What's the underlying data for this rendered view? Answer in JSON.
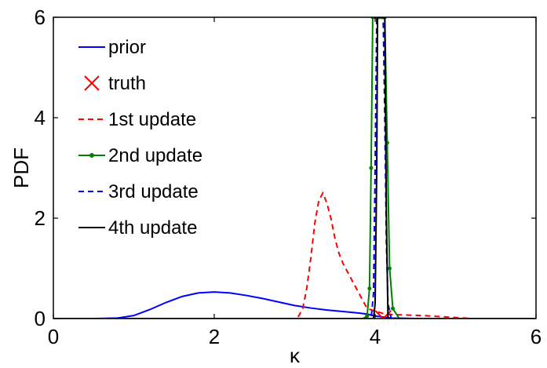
{
  "chart_data": {
    "type": "line",
    "xlabel": "κ",
    "ylabel": "PDF",
    "xlim": [
      0,
      6
    ],
    "ylim": [
      0,
      6
    ],
    "xticks": [
      "0",
      "2",
      "4",
      "6"
    ],
    "yticks": [
      "0",
      "2",
      "4",
      "6"
    ],
    "grid": false,
    "legend": {
      "placement": "top-left"
    },
    "series": [
      {
        "name": "prior",
        "color": "#0000ff",
        "style": "solid",
        "x": [
          0,
          0.5,
          0.8,
          1.0,
          1.2,
          1.4,
          1.6,
          1.8,
          2.0,
          2.2,
          2.4,
          2.6,
          2.8,
          3.0,
          3.2,
          3.4,
          3.6,
          3.8,
          3.9,
          4.0,
          4.2,
          4.5,
          5.0,
          5.5,
          6.0
        ],
        "y": [
          0,
          0,
          0.01,
          0.06,
          0.18,
          0.32,
          0.44,
          0.51,
          0.53,
          0.51,
          0.46,
          0.4,
          0.33,
          0.26,
          0.21,
          0.17,
          0.14,
          0.11,
          0.09,
          0.05,
          0.01,
          0,
          0,
          0,
          0
        ]
      },
      {
        "name": "truth",
        "color": "#ff0000",
        "style": "marker-x",
        "x": [
          4.1
        ],
        "y": [
          0
        ]
      },
      {
        "name": "1st update",
        "color": "#ff0000",
        "style": "dashed",
        "x": [
          0,
          3.0,
          3.05,
          3.1,
          3.15,
          3.2,
          3.25,
          3.3,
          3.35,
          3.4,
          3.45,
          3.5,
          3.55,
          3.6,
          3.7,
          3.8,
          3.9,
          4.0,
          4.1,
          4.2,
          4.4,
          4.6,
          4.8,
          5.0,
          5.2,
          6.0
        ],
        "y": [
          0,
          0,
          0.05,
          0.2,
          0.6,
          1.2,
          1.9,
          2.35,
          2.5,
          2.3,
          2.0,
          1.6,
          1.3,
          1.1,
          0.8,
          0.5,
          0.2,
          0.15,
          0.1,
          0.08,
          0.07,
          0.06,
          0.04,
          0.02,
          0,
          0
        ]
      },
      {
        "name": "2nd update",
        "color": "#008000",
        "style": "solid-dot",
        "x": [
          0,
          3.85,
          3.9,
          3.93,
          3.95,
          3.97,
          4.0,
          4.02,
          4.05,
          4.08,
          4.1,
          4.12,
          4.15,
          4.18,
          4.22,
          4.3,
          6.0
        ],
        "y": [
          0,
          0,
          0.05,
          0.6,
          3.0,
          6.0,
          6.0,
          6.0,
          6.0,
          6.0,
          6.0,
          6.0,
          3.5,
          1.0,
          0.2,
          0,
          0
        ]
      },
      {
        "name": "3rd update",
        "color": "#0000ff",
        "style": "dashed",
        "x": [
          0,
          3.95,
          3.98,
          4.0,
          4.02,
          4.04,
          4.08,
          4.1,
          4.12,
          4.14,
          4.16,
          4.2,
          6.0
        ],
        "y": [
          0,
          0,
          0.5,
          3.0,
          6.0,
          6.0,
          6.0,
          6.0,
          4.0,
          1.5,
          0.3,
          0,
          0
        ]
      },
      {
        "name": "4th update",
        "color": "#000000",
        "style": "solid",
        "x": [
          0,
          3.98,
          4.0,
          4.02,
          4.03,
          4.05,
          4.08,
          4.1,
          4.12,
          4.14,
          4.16,
          6.0
        ],
        "y": [
          0,
          0,
          0.3,
          3.0,
          6.0,
          6.0,
          6.0,
          6.0,
          6.0,
          2.0,
          0,
          0
        ]
      }
    ]
  }
}
